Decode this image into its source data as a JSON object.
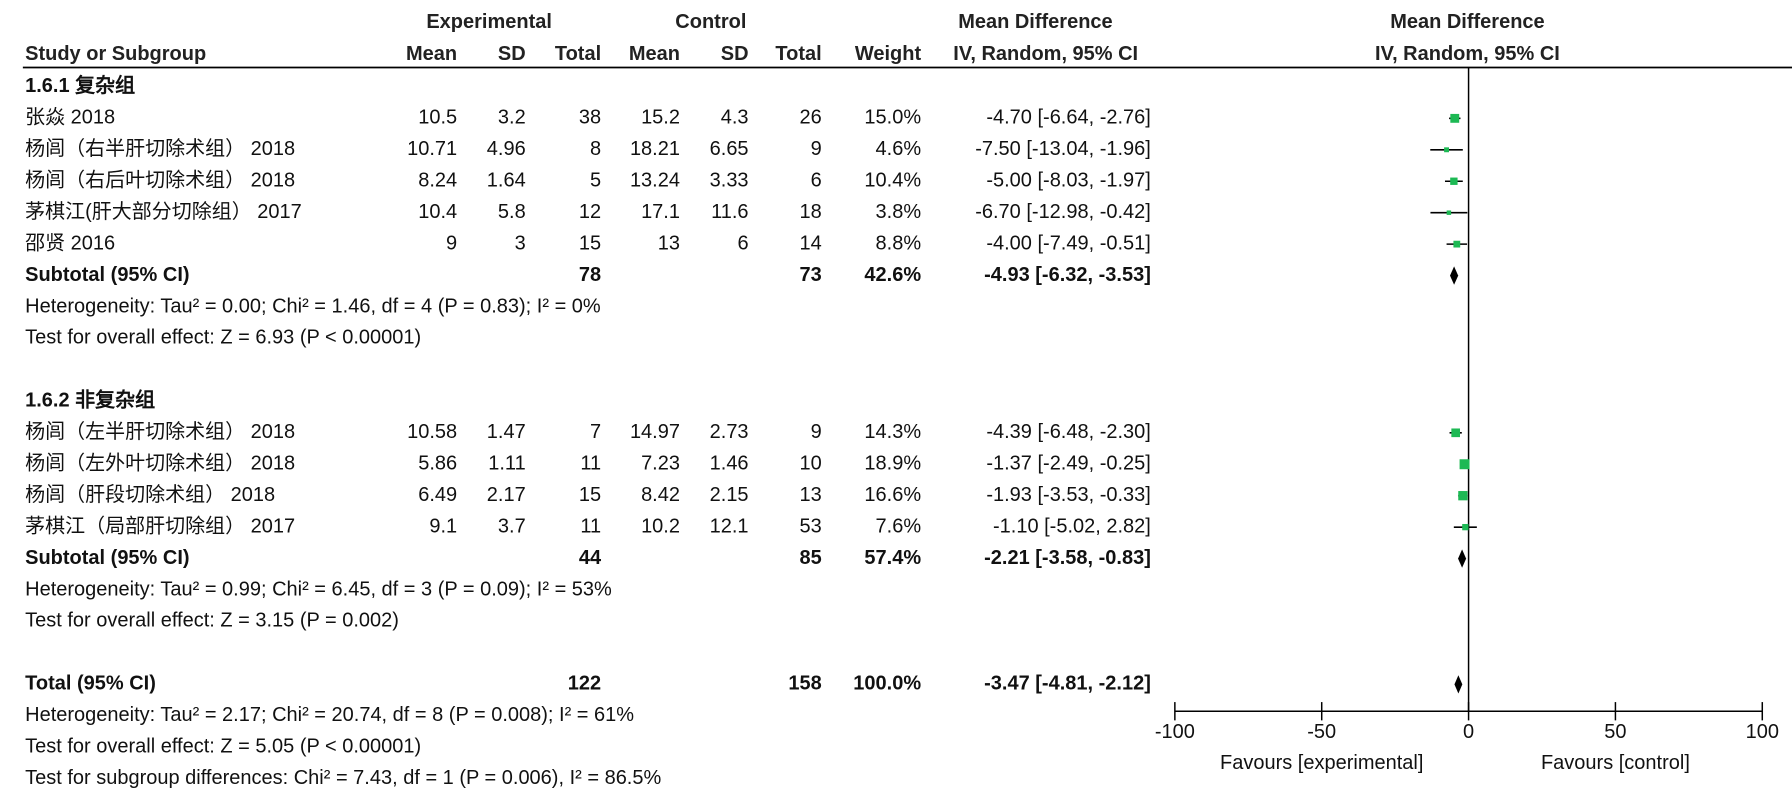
{
  "chart_data": {
    "type": "forest",
    "header": {
      "group1": "Experimental",
      "group2": "Control",
      "effect": "Mean Difference",
      "study": "Study or Subgroup",
      "columns": [
        "Mean",
        "SD",
        "Total",
        "Mean",
        "SD",
        "Total",
        "Weight",
        "IV, Random, 95% CI"
      ],
      "plot_title": "Mean Difference",
      "plot_subtitle": "IV, Random, 95% CI"
    },
    "square_color": "#1db954",
    "diamond_color": "#000000",
    "subgroups": [
      {
        "name": "1.6.1 复杂组",
        "studies": [
          {
            "name": "张焱 2018",
            "e_mean": 10.5,
            "e_sd": 3.2,
            "e_total": 38,
            "c_mean": 15.2,
            "c_sd": 4.3,
            "c_total": 26,
            "weight": {
              "value": 15.0,
              "label": "15.0%"
            },
            "ci": {
              "label": "-4.70 [-6.64, -2.76]",
              "md": -4.7,
              "lower": -6.64,
              "upper": -2.76
            }
          },
          {
            "name": "杨闾（右半肝切除术组） 2018",
            "e_mean": 10.71,
            "e_sd": 4.96,
            "e_total": 8,
            "c_mean": 18.21,
            "c_sd": 6.65,
            "c_total": 9,
            "weight": {
              "value": 4.6,
              "label": "4.6%"
            },
            "ci": {
              "label": "-7.50 [-13.04, -1.96]",
              "md": -7.5,
              "lower": -13.04,
              "upper": -1.96
            }
          },
          {
            "name": "杨闾（右后叶切除术组） 2018",
            "e_mean": 8.24,
            "e_sd": 1.64,
            "e_total": 5,
            "c_mean": 13.24,
            "c_sd": 3.33,
            "c_total": 6,
            "weight": {
              "value": 10.4,
              "label": "10.4%"
            },
            "ci": {
              "label": "-5.00 [-8.03, -1.97]",
              "md": -5.0,
              "lower": -8.03,
              "upper": -1.97
            }
          },
          {
            "name": "茅棋江(肝大部分切除组） 2017",
            "e_mean": 10.4,
            "e_sd": 5.8,
            "e_total": 12,
            "c_mean": 17.1,
            "c_sd": 11.6,
            "c_total": 18,
            "weight": {
              "value": 3.8,
              "label": "3.8%"
            },
            "ci": {
              "label": "-6.70 [-12.98, -0.42]",
              "md": -6.7,
              "lower": -12.98,
              "upper": -0.42
            }
          },
          {
            "name": "邵贤 2016",
            "e_mean": 9,
            "e_sd": 3,
            "e_total": 15,
            "c_mean": 13,
            "c_sd": 6,
            "c_total": 14,
            "weight": {
              "value": 8.8,
              "label": "8.8%"
            },
            "ci": {
              "label": "-4.00 [-7.49, -0.51]",
              "md": -4.0,
              "lower": -7.49,
              "upper": -0.51
            }
          }
        ],
        "subtotal": {
          "label": "Subtotal (95% CI)",
          "e_total": 78,
          "c_total": 73,
          "weight": {
            "value": 42.6,
            "label": "42.6%"
          },
          "ci": {
            "label": "-4.93 [-6.32, -3.53]",
            "md": -4.93,
            "lower": -6.32,
            "upper": -3.53
          }
        },
        "heterogeneity": "Heterogeneity: Tau² = 0.00; Chi² = 1.46, df = 4 (P = 0.83); I² = 0%",
        "overall": "Test for overall effect: Z = 6.93 (P < 0.00001)"
      },
      {
        "name": "1.6.2 非复杂组",
        "studies": [
          {
            "name": "杨闾（左半肝切除术组） 2018",
            "e_mean": 10.58,
            "e_sd": 1.47,
            "e_total": 7,
            "c_mean": 14.97,
            "c_sd": 2.73,
            "c_total": 9,
            "weight": {
              "value": 14.3,
              "label": "14.3%"
            },
            "ci": {
              "label": "-4.39 [-6.48, -2.30]",
              "md": -4.39,
              "lower": -6.48,
              "upper": -2.3
            }
          },
          {
            "name": "杨闾（左外叶切除术组） 2018",
            "e_mean": 5.86,
            "e_sd": 1.11,
            "e_total": 11,
            "c_mean": 7.23,
            "c_sd": 1.46,
            "c_total": 10,
            "weight": {
              "value": 18.9,
              "label": "18.9%"
            },
            "ci": {
              "label": "-1.37 [-2.49, -0.25]",
              "md": -1.37,
              "lower": -2.49,
              "upper": -0.25
            }
          },
          {
            "name": "杨闾（肝段切除术组） 2018",
            "e_mean": 6.49,
            "e_sd": 2.17,
            "e_total": 15,
            "c_mean": 8.42,
            "c_sd": 2.15,
            "c_total": 13,
            "weight": {
              "value": 16.6,
              "label": "16.6%"
            },
            "ci": {
              "label": "-1.93 [-3.53, -0.33]",
              "md": -1.93,
              "lower": -3.53,
              "upper": -0.33
            }
          },
          {
            "name": "茅棋江（局部肝切除组） 2017",
            "e_mean": 9.1,
            "e_sd": 3.7,
            "e_total": 11,
            "c_mean": 10.2,
            "c_sd": 12.1,
            "c_total": 53,
            "weight": {
              "value": 7.6,
              "label": "7.6%"
            },
            "ci": {
              "label": "-1.10 [-5.02, 2.82]",
              "md": -1.1,
              "lower": -5.02,
              "upper": 2.82
            }
          }
        ],
        "subtotal": {
          "label": "Subtotal (95% CI)",
          "e_total": 44,
          "c_total": 85,
          "weight": {
            "value": 57.4,
            "label": "57.4%"
          },
          "ci": {
            "label": "-2.21 [-3.58, -0.83]",
            "md": -2.21,
            "lower": -3.58,
            "upper": -0.83
          }
        },
        "heterogeneity": "Heterogeneity: Tau² = 0.99; Chi² = 6.45, df = 3 (P = 0.09); I² = 53%",
        "overall": "Test for overall effect: Z = 3.15 (P = 0.002)"
      }
    ],
    "total": {
      "label": "Total (95% CI)",
      "e_total": 122,
      "c_total": 158,
      "weight": {
        "value": 100.0,
        "label": "100.0%"
      },
      "ci": {
        "label": "-3.47 [-4.81, -2.12]",
        "md": -3.47,
        "lower": -4.81,
        "upper": -2.12
      },
      "heterogeneity": "Heterogeneity: Tau² = 2.17; Chi² = 20.74, df = 8 (P = 0.008); I² = 61%",
      "overall": "Test for overall effect: Z = 5.05 (P < 0.00001)",
      "subgroup_differences": "Test for subgroup differences: Chi² = 7.43, df = 1 (P = 0.006), I² = 86.5%"
    },
    "xlim": [
      -100,
      100
    ],
    "xticks": [
      -100,
      -50,
      0,
      50,
      100
    ],
    "favours_left": "Favours [experimental]",
    "favours_right": "Favours [control]"
  }
}
